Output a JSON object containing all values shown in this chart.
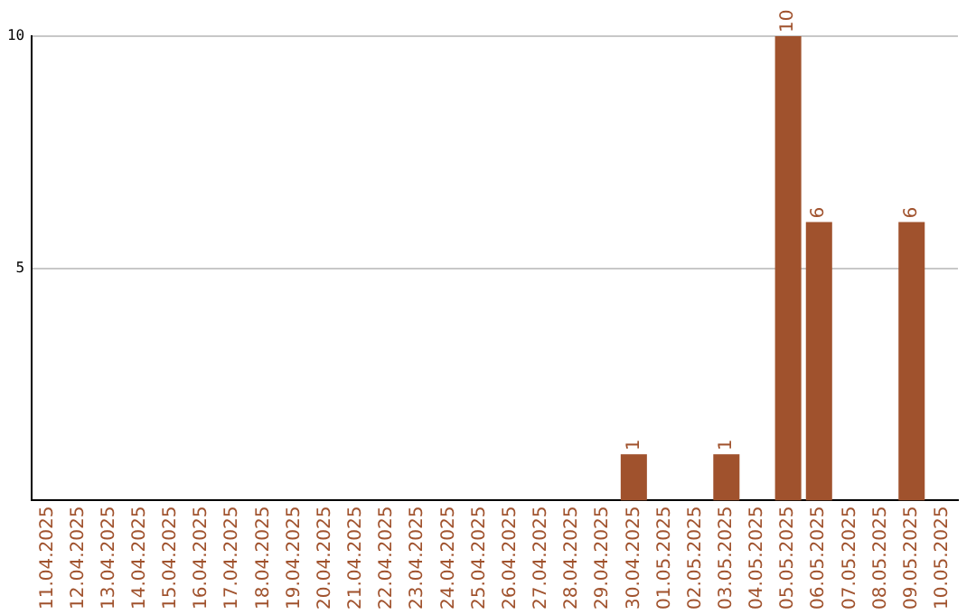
{
  "chart_data": {
    "type": "bar",
    "categories": [
      "11.04.2025",
      "12.04.2025",
      "13.04.2025",
      "14.04.2025",
      "15.04.2025",
      "16.04.2025",
      "17.04.2025",
      "18.04.2025",
      "19.04.2025",
      "20.04.2025",
      "21.04.2025",
      "22.04.2025",
      "23.04.2025",
      "24.04.2025",
      "25.04.2025",
      "26.04.2025",
      "27.04.2025",
      "28.04.2025",
      "29.04.2025",
      "30.04.2025",
      "01.05.2025",
      "02.05.2025",
      "03.05.2025",
      "04.05.2025",
      "05.05.2025",
      "06.05.2025",
      "07.05.2025",
      "08.05.2025",
      "09.05.2025",
      "10.05.2025"
    ],
    "values": [
      0,
      0,
      0,
      0,
      0,
      0,
      0,
      0,
      0,
      0,
      0,
      0,
      0,
      0,
      0,
      0,
      0,
      0,
      0,
      1,
      0,
      0,
      1,
      0,
      10,
      6,
      0,
      0,
      6,
      0
    ],
    "value_labels": [
      null,
      null,
      null,
      null,
      null,
      null,
      null,
      null,
      null,
      null,
      null,
      null,
      null,
      null,
      null,
      null,
      null,
      null,
      null,
      "1",
      null,
      null,
      "1",
      null,
      "10",
      "6",
      null,
      null,
      "6",
      null
    ],
    "color": "#a0522d",
    "ylim": [
      0,
      10
    ],
    "yticks": [
      5,
      10
    ],
    "grid": "y",
    "legend": false
  }
}
